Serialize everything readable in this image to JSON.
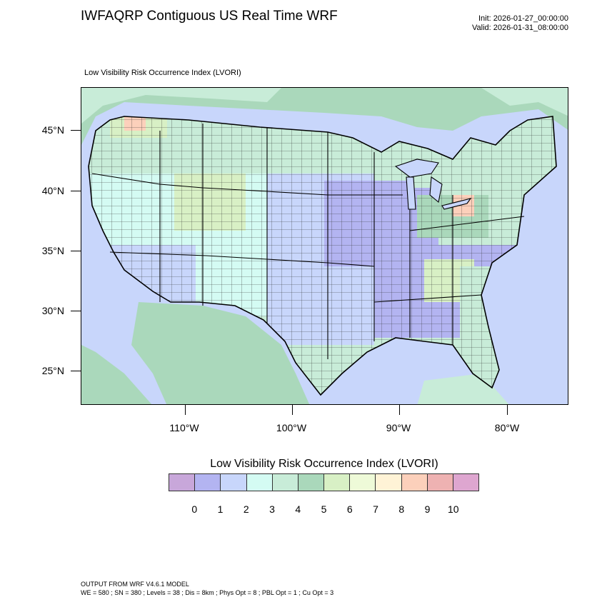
{
  "header": {
    "title": "IWFAQRP Contiguous US Real Time WRF",
    "init": "Init: 2026-01-27_00:00:00",
    "valid": "Valid: 2026-01-31_08:00:00"
  },
  "plot": {
    "subtitle": "Low Visibility Risk Occurrence Index   (LVORI)"
  },
  "axes": {
    "lat_labels": [
      "45°N",
      "40°N",
      "35°N",
      "30°N",
      "25°N"
    ],
    "lon_labels": [
      "110°W",
      "100°W",
      "90°W",
      "80°W"
    ]
  },
  "colorbar": {
    "title": "Low Visibility Risk Occurrence Index  (LVORI)",
    "labels": [
      "0",
      "1",
      "2",
      "3",
      "4",
      "5",
      "6",
      "7",
      "8",
      "9",
      "10"
    ],
    "colors": [
      "#c8a7da",
      "#b3b4f1",
      "#c8d6fb",
      "#d4fbf3",
      "#c8ecd8",
      "#aad8bb",
      "#d8f0c5",
      "#eefad8",
      "#fff3d6",
      "#fcd0bb",
      "#eeb2b2",
      "#dea6d0"
    ]
  },
  "footer": {
    "line1": "OUTPUT FROM WRF V4.6.1 MODEL",
    "line2": "WE = 580 ; SN = 380 ; Levels = 38 ; Dis = 8km ; Phys Opt = 8 ; PBL Opt = 1 ; Cu Opt = 3"
  }
}
